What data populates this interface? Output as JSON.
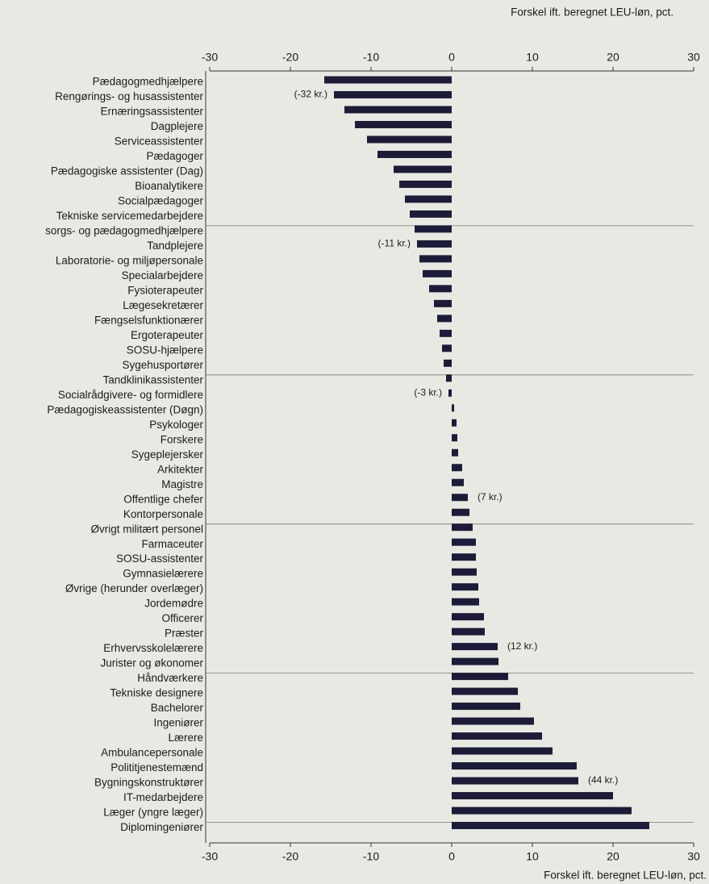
{
  "chart_data": {
    "type": "bar",
    "orientation": "horizontal",
    "axis_title": "Forskel ift. beregnet LEU-løn, pct.",
    "categories": [
      "Pædagogmedhjælpere",
      "Rengørings- og husassistenter",
      "Ernæringsassistenter",
      "Dagplejere",
      "Serviceassistenter",
      "Pædagoger",
      "Pædagogiske assistenter (Dag)",
      "Bioanalytikere",
      "Socialpædagoger",
      "Tekniske servicemedarbejdere",
      "sorgs- og pædagogmedhjælpere",
      "Tandplejere",
      "Laboratorie- og miljøpersonale",
      "Specialarbejdere",
      "Fysioterapeuter",
      "Lægesekretærer",
      "Fængselsfunktionærer",
      "Ergoterapeuter",
      "SOSU-hjælpere",
      "Sygehusportører",
      "Tandklinikassistenter",
      "Socialrådgivere- og formidlere",
      "Pædagogiskeassistenter (Døgn)",
      "Psykologer",
      "Forskere",
      "Sygeplejersker",
      "Arkitekter",
      "Magistre",
      "Offentlige chefer",
      "Kontorpersonale",
      "Øvrigt militært personel",
      "Farmaceuter",
      "SOSU-assistenter",
      "Gymnasielærere",
      "Øvrige (herunder overlæger)",
      "Jordemødre",
      "Officerer",
      "Præster",
      "Erhvervsskolelærere",
      "Jurister og økonomer",
      "Håndværkere",
      "Tekniske designere",
      "Bachelorer",
      "Ingeniører",
      "Lærere",
      "Ambulancepersonale",
      "Polititjenestemænd",
      "Bygningskonstruktører",
      "IT-medarbejdere",
      "Læger (yngre læger)",
      "Diplomingeniører"
    ],
    "values": [
      -15.8,
      -14.6,
      -13.3,
      -12,
      -10.5,
      -9.2,
      -7.2,
      -6.5,
      -5.8,
      -5.2,
      -4.6,
      -4.3,
      -4,
      -3.6,
      -2.8,
      -2.2,
      -1.8,
      -1.5,
      -1.2,
      -1,
      -0.7,
      -0.4,
      0.3,
      0.6,
      0.7,
      0.8,
      1.3,
      1.5,
      2,
      2.2,
      2.6,
      3,
      3,
      3.1,
      3.3,
      3.4,
      4,
      4.1,
      5.7,
      5.8,
      7,
      8.2,
      8.5,
      10.2,
      11.2,
      12.5,
      15.5,
      15.7,
      20,
      22.3,
      24.5
    ],
    "color": "#1c1c38",
    "xlim": [
      -30,
      30
    ],
    "xticks": [
      -30,
      -20,
      -10,
      0,
      10,
      20,
      30
    ],
    "annotations": [
      {
        "text": "(-32 kr.)",
        "category": "Rengørings- og husassistenter"
      },
      {
        "text": "(-11 kr.)",
        "category": "Tandplejere"
      },
      {
        "text": "(-3 kr.)",
        "category": "Socialrådgivere- og formidlere"
      },
      {
        "text": "(7 kr.)",
        "category": "Offentlige chefer"
      },
      {
        "text": "(12 kr.)",
        "category": "Erhvervsskolelærere"
      },
      {
        "text": "(44 kr.)",
        "category": "Bygningskonstruktører"
      }
    ]
  }
}
